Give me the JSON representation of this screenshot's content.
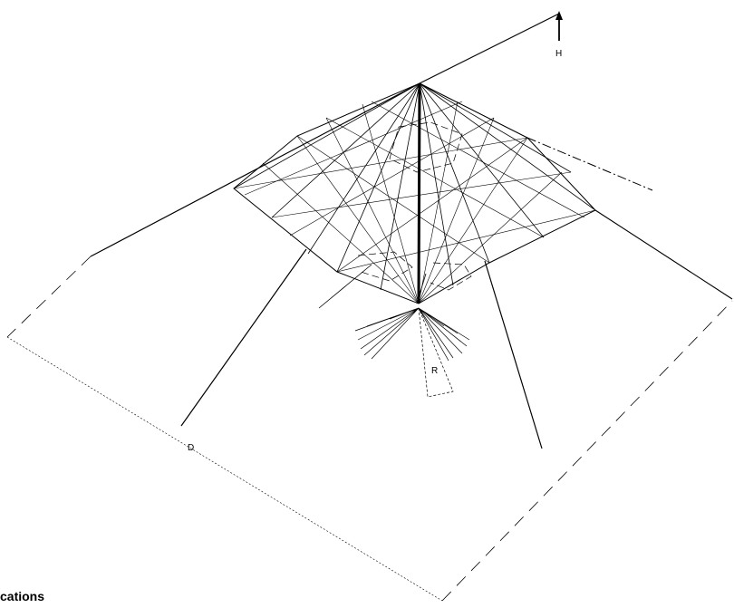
{
  "labels": {
    "height": "H",
    "radius": "R",
    "diameter": "D"
  },
  "caption": "cations",
  "colors": {
    "line": "#000000",
    "background": "#ffffff"
  }
}
